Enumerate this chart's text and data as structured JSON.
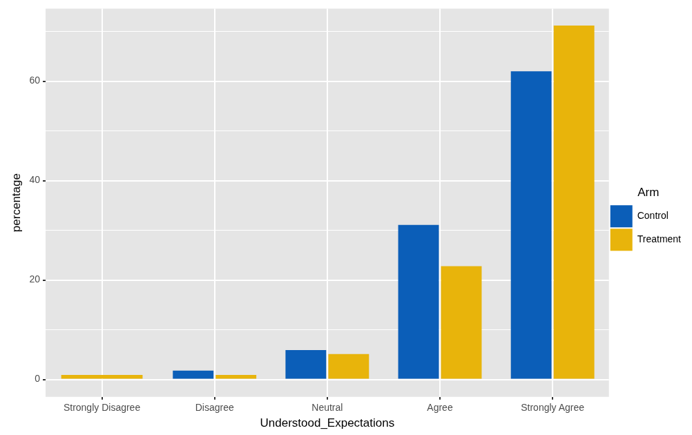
{
  "chart_data": {
    "type": "bar",
    "categories": [
      "Strongly Disagree",
      "Disagree",
      "Neutral",
      "Agree",
      "Strongly Agree"
    ],
    "series": [
      {
        "name": "Control",
        "color": "#0b5eb8",
        "values": [
          null,
          1.8,
          5.9,
          31.1,
          62.0
        ]
      },
      {
        "name": "Treatment",
        "color": "#e8b40b",
        "values": [
          0.9,
          0.9,
          5.1,
          22.8,
          71.2
        ]
      }
    ],
    "xlabel": "Understood_Expectations",
    "ylabel": "percentage",
    "legend_title": "Arm",
    "ylim": [
      -3.5,
      74.6
    ],
    "yticks": [
      0,
      {
        "value": 10,
        "label": null
      },
      20,
      {
        "value": 30,
        "label": null
      },
      40,
      {
        "value": 50,
        "label": null
      },
      60,
      {
        "value": 70,
        "label": null
      }
    ],
    "grid": true,
    "legend": "right"
  }
}
